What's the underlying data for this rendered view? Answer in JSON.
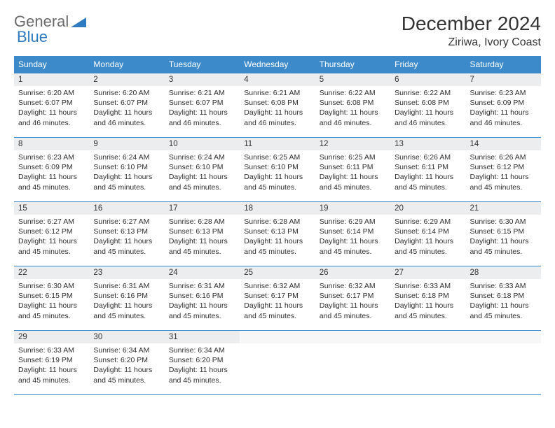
{
  "brand": {
    "word1": "General",
    "word2": "Blue"
  },
  "title": "December 2024",
  "location": "Ziriwa, Ivory Coast",
  "colors": {
    "header_bg": "#3c8ac9",
    "header_text": "#ffffff",
    "daynum_bg": "#ecedee",
    "border": "#3c8ac9",
    "brand_grey": "#6b6b6b",
    "brand_blue": "#2f7bbf"
  },
  "weekdays": [
    "Sunday",
    "Monday",
    "Tuesday",
    "Wednesday",
    "Thursday",
    "Friday",
    "Saturday"
  ],
  "weeks": [
    [
      {
        "n": "1",
        "sr": "Sunrise: 6:20 AM",
        "ss": "Sunset: 6:07 PM",
        "dl": "Daylight: 11 hours and 46 minutes."
      },
      {
        "n": "2",
        "sr": "Sunrise: 6:20 AM",
        "ss": "Sunset: 6:07 PM",
        "dl": "Daylight: 11 hours and 46 minutes."
      },
      {
        "n": "3",
        "sr": "Sunrise: 6:21 AM",
        "ss": "Sunset: 6:07 PM",
        "dl": "Daylight: 11 hours and 46 minutes."
      },
      {
        "n": "4",
        "sr": "Sunrise: 6:21 AM",
        "ss": "Sunset: 6:08 PM",
        "dl": "Daylight: 11 hours and 46 minutes."
      },
      {
        "n": "5",
        "sr": "Sunrise: 6:22 AM",
        "ss": "Sunset: 6:08 PM",
        "dl": "Daylight: 11 hours and 46 minutes."
      },
      {
        "n": "6",
        "sr": "Sunrise: 6:22 AM",
        "ss": "Sunset: 6:08 PM",
        "dl": "Daylight: 11 hours and 46 minutes."
      },
      {
        "n": "7",
        "sr": "Sunrise: 6:23 AM",
        "ss": "Sunset: 6:09 PM",
        "dl": "Daylight: 11 hours and 46 minutes."
      }
    ],
    [
      {
        "n": "8",
        "sr": "Sunrise: 6:23 AM",
        "ss": "Sunset: 6:09 PM",
        "dl": "Daylight: 11 hours and 45 minutes."
      },
      {
        "n": "9",
        "sr": "Sunrise: 6:24 AM",
        "ss": "Sunset: 6:10 PM",
        "dl": "Daylight: 11 hours and 45 minutes."
      },
      {
        "n": "10",
        "sr": "Sunrise: 6:24 AM",
        "ss": "Sunset: 6:10 PM",
        "dl": "Daylight: 11 hours and 45 minutes."
      },
      {
        "n": "11",
        "sr": "Sunrise: 6:25 AM",
        "ss": "Sunset: 6:10 PM",
        "dl": "Daylight: 11 hours and 45 minutes."
      },
      {
        "n": "12",
        "sr": "Sunrise: 6:25 AM",
        "ss": "Sunset: 6:11 PM",
        "dl": "Daylight: 11 hours and 45 minutes."
      },
      {
        "n": "13",
        "sr": "Sunrise: 6:26 AM",
        "ss": "Sunset: 6:11 PM",
        "dl": "Daylight: 11 hours and 45 minutes."
      },
      {
        "n": "14",
        "sr": "Sunrise: 6:26 AM",
        "ss": "Sunset: 6:12 PM",
        "dl": "Daylight: 11 hours and 45 minutes."
      }
    ],
    [
      {
        "n": "15",
        "sr": "Sunrise: 6:27 AM",
        "ss": "Sunset: 6:12 PM",
        "dl": "Daylight: 11 hours and 45 minutes."
      },
      {
        "n": "16",
        "sr": "Sunrise: 6:27 AM",
        "ss": "Sunset: 6:13 PM",
        "dl": "Daylight: 11 hours and 45 minutes."
      },
      {
        "n": "17",
        "sr": "Sunrise: 6:28 AM",
        "ss": "Sunset: 6:13 PM",
        "dl": "Daylight: 11 hours and 45 minutes."
      },
      {
        "n": "18",
        "sr": "Sunrise: 6:28 AM",
        "ss": "Sunset: 6:13 PM",
        "dl": "Daylight: 11 hours and 45 minutes."
      },
      {
        "n": "19",
        "sr": "Sunrise: 6:29 AM",
        "ss": "Sunset: 6:14 PM",
        "dl": "Daylight: 11 hours and 45 minutes."
      },
      {
        "n": "20",
        "sr": "Sunrise: 6:29 AM",
        "ss": "Sunset: 6:14 PM",
        "dl": "Daylight: 11 hours and 45 minutes."
      },
      {
        "n": "21",
        "sr": "Sunrise: 6:30 AM",
        "ss": "Sunset: 6:15 PM",
        "dl": "Daylight: 11 hours and 45 minutes."
      }
    ],
    [
      {
        "n": "22",
        "sr": "Sunrise: 6:30 AM",
        "ss": "Sunset: 6:15 PM",
        "dl": "Daylight: 11 hours and 45 minutes."
      },
      {
        "n": "23",
        "sr": "Sunrise: 6:31 AM",
        "ss": "Sunset: 6:16 PM",
        "dl": "Daylight: 11 hours and 45 minutes."
      },
      {
        "n": "24",
        "sr": "Sunrise: 6:31 AM",
        "ss": "Sunset: 6:16 PM",
        "dl": "Daylight: 11 hours and 45 minutes."
      },
      {
        "n": "25",
        "sr": "Sunrise: 6:32 AM",
        "ss": "Sunset: 6:17 PM",
        "dl": "Daylight: 11 hours and 45 minutes."
      },
      {
        "n": "26",
        "sr": "Sunrise: 6:32 AM",
        "ss": "Sunset: 6:17 PM",
        "dl": "Daylight: 11 hours and 45 minutes."
      },
      {
        "n": "27",
        "sr": "Sunrise: 6:33 AM",
        "ss": "Sunset: 6:18 PM",
        "dl": "Daylight: 11 hours and 45 minutes."
      },
      {
        "n": "28",
        "sr": "Sunrise: 6:33 AM",
        "ss": "Sunset: 6:18 PM",
        "dl": "Daylight: 11 hours and 45 minutes."
      }
    ],
    [
      {
        "n": "29",
        "sr": "Sunrise: 6:33 AM",
        "ss": "Sunset: 6:19 PM",
        "dl": "Daylight: 11 hours and 45 minutes."
      },
      {
        "n": "30",
        "sr": "Sunrise: 6:34 AM",
        "ss": "Sunset: 6:20 PM",
        "dl": "Daylight: 11 hours and 45 minutes."
      },
      {
        "n": "31",
        "sr": "Sunrise: 6:34 AM",
        "ss": "Sunset: 6:20 PM",
        "dl": "Daylight: 11 hours and 45 minutes."
      },
      {
        "n": "",
        "sr": "",
        "ss": "",
        "dl": ""
      },
      {
        "n": "",
        "sr": "",
        "ss": "",
        "dl": ""
      },
      {
        "n": "",
        "sr": "",
        "ss": "",
        "dl": ""
      },
      {
        "n": "",
        "sr": "",
        "ss": "",
        "dl": ""
      }
    ]
  ]
}
